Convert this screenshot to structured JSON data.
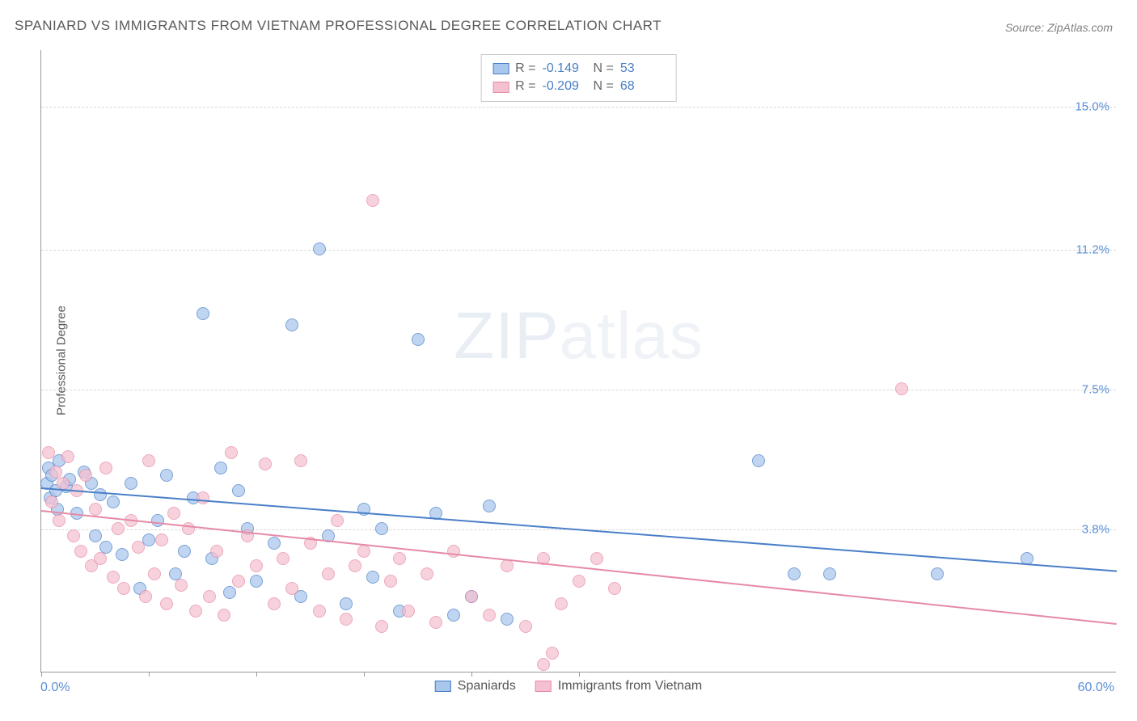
{
  "title": "SPANIARD VS IMMIGRANTS FROM VIETNAM PROFESSIONAL DEGREE CORRELATION CHART",
  "source_label": "Source: ZipAtlas.com",
  "ylabel": "Professional Degree",
  "watermark": {
    "part1": "ZIP",
    "part2": "atlas"
  },
  "chart": {
    "type": "scatter",
    "xlim": [
      0,
      60
    ],
    "ylim": [
      0,
      16.5
    ],
    "x_label_min": "0.0%",
    "x_label_max": "60.0%",
    "y_gridlines": [
      3.8,
      7.5,
      11.2,
      15.0
    ],
    "y_grid_labels": [
      "3.8%",
      "7.5%",
      "11.2%",
      "15.0%"
    ],
    "xtick_positions": [
      0,
      6,
      12,
      18,
      24,
      30
    ],
    "grid_color": "#d8d8d8",
    "axis_color": "#999999",
    "background_color": "#ffffff",
    "label_color": "#5b8fd6",
    "marker_radius": 8,
    "marker_stroke_width": 1.2,
    "marker_fill_opacity": 0.28,
    "trend_line_width": 2
  },
  "series": [
    {
      "key": "spaniards",
      "label": "Spaniards",
      "color_stroke": "#4a7fc8",
      "color_fill": "#a9c6ec",
      "R": "-0.149",
      "N": "53",
      "trend": {
        "x1": 0,
        "y1": 4.9,
        "x2": 60,
        "y2": 2.7
      },
      "points": [
        [
          0.3,
          5.0
        ],
        [
          0.4,
          5.4
        ],
        [
          0.5,
          4.6
        ],
        [
          0.6,
          5.2
        ],
        [
          0.8,
          4.8
        ],
        [
          0.9,
          4.3
        ],
        [
          1.0,
          5.6
        ],
        [
          1.4,
          4.9
        ],
        [
          1.6,
          5.1
        ],
        [
          2.0,
          4.2
        ],
        [
          2.4,
          5.3
        ],
        [
          2.8,
          5.0
        ],
        [
          3.0,
          3.6
        ],
        [
          3.3,
          4.7
        ],
        [
          3.6,
          3.3
        ],
        [
          4.0,
          4.5
        ],
        [
          4.5,
          3.1
        ],
        [
          5.0,
          5.0
        ],
        [
          5.5,
          2.2
        ],
        [
          6.0,
          3.5
        ],
        [
          6.5,
          4.0
        ],
        [
          7.0,
          5.2
        ],
        [
          7.5,
          2.6
        ],
        [
          8.0,
          3.2
        ],
        [
          8.5,
          4.6
        ],
        [
          9.0,
          9.5
        ],
        [
          9.5,
          3.0
        ],
        [
          10.0,
          5.4
        ],
        [
          10.5,
          2.1
        ],
        [
          11.0,
          4.8
        ],
        [
          11.5,
          3.8
        ],
        [
          12.0,
          2.4
        ],
        [
          13.0,
          3.4
        ],
        [
          14.0,
          9.2
        ],
        [
          14.5,
          2.0
        ],
        [
          15.5,
          11.2
        ],
        [
          16.0,
          3.6
        ],
        [
          17.0,
          1.8
        ],
        [
          18.0,
          4.3
        ],
        [
          18.5,
          2.5
        ],
        [
          19.0,
          3.8
        ],
        [
          20.0,
          1.6
        ],
        [
          21.0,
          8.8
        ],
        [
          22.0,
          4.2
        ],
        [
          23.0,
          1.5
        ],
        [
          24.0,
          2.0
        ],
        [
          25.0,
          4.4
        ],
        [
          26.0,
          1.4
        ],
        [
          40.0,
          5.6
        ],
        [
          42.0,
          2.6
        ],
        [
          44.0,
          2.6
        ],
        [
          50.0,
          2.6
        ],
        [
          55.0,
          3.0
        ]
      ]
    },
    {
      "key": "vietnam",
      "label": "Immigrants from Vietnam",
      "color_stroke": "#e68aa5",
      "color_fill": "#f5c1d0",
      "R": "-0.209",
      "N": "68",
      "trend": {
        "x1": 0,
        "y1": 4.3,
        "x2": 60,
        "y2": 1.3
      },
      "points": [
        [
          0.4,
          5.8
        ],
        [
          0.6,
          4.5
        ],
        [
          0.8,
          5.3
        ],
        [
          1.0,
          4.0
        ],
        [
          1.2,
          5.0
        ],
        [
          1.5,
          5.7
        ],
        [
          1.8,
          3.6
        ],
        [
          2.0,
          4.8
        ],
        [
          2.2,
          3.2
        ],
        [
          2.5,
          5.2
        ],
        [
          2.8,
          2.8
        ],
        [
          3.0,
          4.3
        ],
        [
          3.3,
          3.0
        ],
        [
          3.6,
          5.4
        ],
        [
          4.0,
          2.5
        ],
        [
          4.3,
          3.8
        ],
        [
          4.6,
          2.2
        ],
        [
          5.0,
          4.0
        ],
        [
          5.4,
          3.3
        ],
        [
          5.8,
          2.0
        ],
        [
          6.0,
          5.6
        ],
        [
          6.3,
          2.6
        ],
        [
          6.7,
          3.5
        ],
        [
          7.0,
          1.8
        ],
        [
          7.4,
          4.2
        ],
        [
          7.8,
          2.3
        ],
        [
          8.2,
          3.8
        ],
        [
          8.6,
          1.6
        ],
        [
          9.0,
          4.6
        ],
        [
          9.4,
          2.0
        ],
        [
          9.8,
          3.2
        ],
        [
          10.2,
          1.5
        ],
        [
          10.6,
          5.8
        ],
        [
          11.0,
          2.4
        ],
        [
          11.5,
          3.6
        ],
        [
          12.0,
          2.8
        ],
        [
          12.5,
          5.5
        ],
        [
          13.0,
          1.8
        ],
        [
          13.5,
          3.0
        ],
        [
          14.0,
          2.2
        ],
        [
          14.5,
          5.6
        ],
        [
          15.0,
          3.4
        ],
        [
          15.5,
          1.6
        ],
        [
          16.0,
          2.6
        ],
        [
          16.5,
          4.0
        ],
        [
          17.0,
          1.4
        ],
        [
          17.5,
          2.8
        ],
        [
          18.0,
          3.2
        ],
        [
          18.5,
          12.5
        ],
        [
          19.0,
          1.2
        ],
        [
          19.5,
          2.4
        ],
        [
          20.0,
          3.0
        ],
        [
          20.5,
          1.6
        ],
        [
          21.5,
          2.6
        ],
        [
          22.0,
          1.3
        ],
        [
          23.0,
          3.2
        ],
        [
          24.0,
          2.0
        ],
        [
          25.0,
          1.5
        ],
        [
          26.0,
          2.8
        ],
        [
          27.0,
          1.2
        ],
        [
          28.0,
          3.0
        ],
        [
          28.5,
          0.5
        ],
        [
          29.0,
          1.8
        ],
        [
          30.0,
          2.4
        ],
        [
          31.0,
          3.0
        ],
        [
          32.0,
          2.2
        ],
        [
          48.0,
          7.5
        ],
        [
          28.0,
          0.2
        ]
      ]
    }
  ]
}
